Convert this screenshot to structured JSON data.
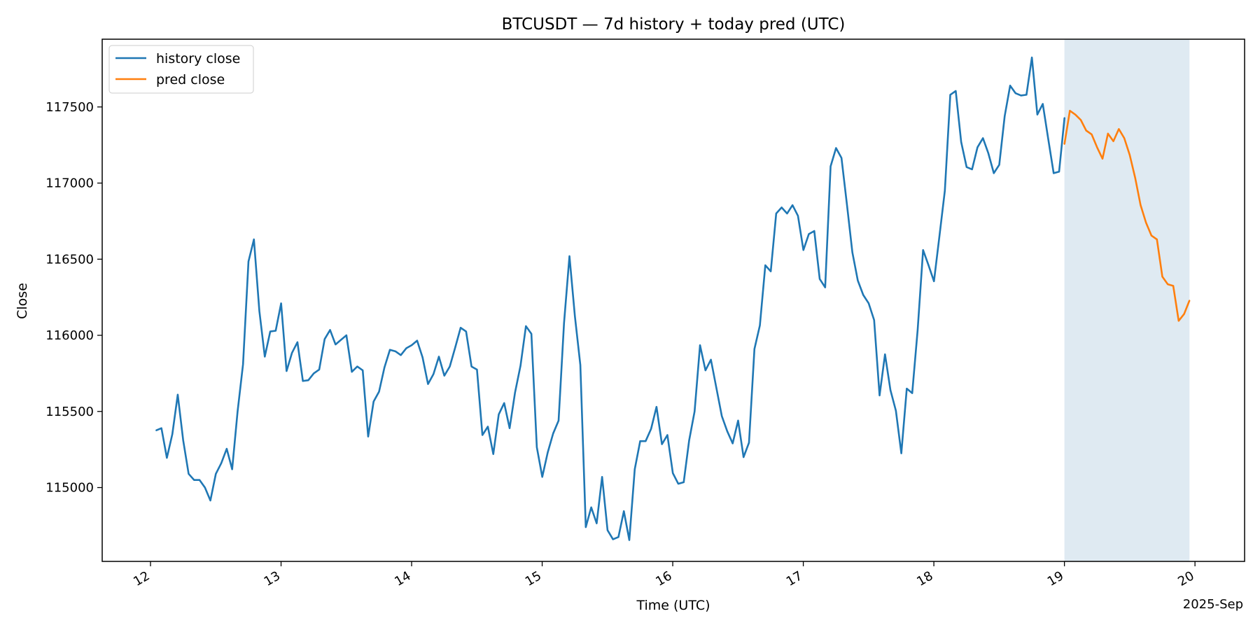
{
  "chart_data": {
    "type": "line",
    "title": "BTCUSDT — 7d history + today pred (UTC)",
    "xlabel": "Time (UTC)",
    "ylabel": "Close",
    "x_offset_label": "2025-Sep",
    "x_unit": "day of month (Sep 2025, UTC)",
    "xlim": [
      11.63,
      20.38
    ],
    "ylim": [
      114515,
      117945
    ],
    "x_ticks": [
      12,
      13,
      14,
      15,
      16,
      17,
      18,
      19,
      20
    ],
    "x_tick_labels": [
      "12",
      "13",
      "14",
      "15",
      "16",
      "17",
      "18",
      "19",
      "20"
    ],
    "y_ticks": [
      115000,
      115500,
      116000,
      116500,
      117000,
      117500
    ],
    "y_tick_labels": [
      "115000",
      "115500",
      "116000",
      "116500",
      "117000",
      "117500"
    ],
    "grid": false,
    "legend_position": "top-left",
    "shaded_region": {
      "x": [
        19.0,
        19.958
      ],
      "color": "#dfeaf2"
    },
    "series": [
      {
        "name": "history close",
        "color": "#1f77b4",
        "x_start": 12.042,
        "x_step": 0.04167,
        "y": [
          115375,
          115390,
          115195,
          115350,
          115610,
          115310,
          115090,
          115050,
          115050,
          115000,
          114915,
          115090,
          115160,
          115255,
          115120,
          115500,
          115810,
          116485,
          116630,
          116160,
          115860,
          116025,
          116030,
          116210,
          115765,
          115885,
          115955,
          115700,
          115705,
          115750,
          115775,
          115975,
          116035,
          115940,
          115970,
          116000,
          115760,
          115795,
          115770,
          115335,
          115565,
          115630,
          115790,
          115905,
          115895,
          115870,
          115915,
          115935,
          115965,
          115855,
          115680,
          115745,
          115860,
          115735,
          115795,
          115920,
          116050,
          116025,
          115795,
          115775,
          115345,
          115400,
          115220,
          115480,
          115555,
          115390,
          115625,
          115800,
          116060,
          116010,
          115265,
          115070,
          115230,
          115355,
          115440,
          116080,
          116520,
          116125,
          115805,
          114740,
          114870,
          114765,
          115070,
          114720,
          114660,
          114675,
          114845,
          114655,
          115120,
          115305,
          115305,
          115385,
          115530,
          115285,
          115345,
          115095,
          115025,
          115035,
          115310,
          115500,
          115935,
          115770,
          115840,
          115655,
          115470,
          115370,
          115290,
          115440,
          115200,
          115295,
          115910,
          116065,
          116460,
          116420,
          116800,
          116840,
          116800,
          116855,
          116785,
          116560,
          116665,
          116685,
          116370,
          116315,
          117110,
          117230,
          117165,
          116860,
          116545,
          116360,
          116265,
          116210,
          116100,
          115605,
          115875,
          115640,
          115505,
          115225,
          115650,
          115620,
          116035,
          116560,
          116460,
          116355,
          116650,
          116950,
          117580,
          117605,
          117270,
          117105,
          117090,
          117235,
          117295,
          117195,
          117065,
          117120,
          117440,
          117640,
          117590,
          117575,
          117580,
          117825,
          117450,
          117520,
          117290,
          117065,
          117075,
          117430
        ]
      },
      {
        "name": "pred close",
        "color": "#ff7f0e",
        "x_start": 19.0,
        "x_step": 0.04167,
        "y": [
          117255,
          117475,
          117450,
          117415,
          117345,
          117320,
          117235,
          117160,
          117325,
          117275,
          117355,
          117295,
          117185,
          117035,
          116855,
          116740,
          116655,
          116630,
          116385,
          116335,
          116325,
          116095,
          116140,
          116230
        ]
      }
    ]
  }
}
